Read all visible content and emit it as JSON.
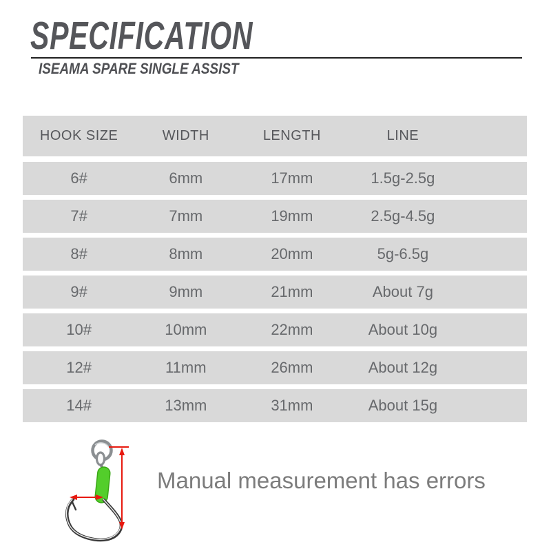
{
  "page": {
    "title": "SPECIFICATION",
    "subtitle": "ISEAMA SPARE SINGLE ASSIST",
    "footnote": "Manual measurement has errors"
  },
  "spec_table": {
    "columns": [
      "HOOK SIZE",
      "WIDTH",
      "LENGTH",
      "LINE"
    ],
    "rows": [
      [
        "6#",
        "6mm",
        "17mm",
        "1.5g-2.5g"
      ],
      [
        "7#",
        "7mm",
        "19mm",
        "2.5g-4.5g"
      ],
      [
        "8#",
        "8mm",
        "20mm",
        "5g-6.5g"
      ],
      [
        "9#",
        "9mm",
        "21mm",
        "About 7g"
      ],
      [
        "10#",
        "10mm",
        "22mm",
        "About 10g"
      ],
      [
        "12#",
        "11mm",
        "26mm",
        "About 12g"
      ],
      [
        "14#",
        "13mm",
        "31mm",
        "About 15g"
      ]
    ]
  },
  "figure": {
    "name": "assist-hook-measurement-diagram",
    "parts": [
      "solid-ring",
      "hook-eye",
      "green-shrink-tube",
      "hook-wire",
      "length-arrow",
      "width-arrow"
    ]
  },
  "colors": {
    "table_row_bg": "#d9d9d9",
    "title_gray": "#55565a",
    "table_text_gray": "#67696c",
    "footnote_gray": "#7c7c7c",
    "arrow_red": "#e8190f",
    "sleeve_green": "#53ce2b",
    "metal_gray": "#8b8f92"
  }
}
